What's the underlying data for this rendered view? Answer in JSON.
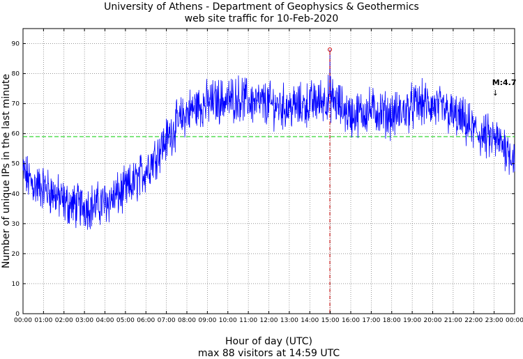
{
  "chart_data": {
    "type": "line",
    "title": "University of Athens - Department of Geophysics & Geothermics",
    "subtitle": "web site traffic for 10-Feb-2020",
    "xlabel": "Hour of day (UTC)",
    "ylabel": "Number of unique IPs in the last minute",
    "caption": "max 88 visitors at 14:59 UTC",
    "xlim": [
      0,
      24
    ],
    "ylim": [
      0,
      95
    ],
    "xticks": [
      "00:00",
      "01:00",
      "02:00",
      "03:00",
      "04:00",
      "05:00",
      "06:00",
      "07:00",
      "08:00",
      "09:00",
      "10:00",
      "11:00",
      "12:00",
      "13:00",
      "14:00",
      "15:00",
      "16:00",
      "17:00",
      "18:00",
      "19:00",
      "20:00",
      "21:00",
      "22:00",
      "23:00",
      "00:00"
    ],
    "yticks": [
      0,
      10,
      20,
      30,
      40,
      50,
      60,
      70,
      80,
      90
    ],
    "grid": true,
    "series": [
      {
        "color": "#0000ff",
        "x": [
          0,
          0.5,
          1,
          1.5,
          2,
          2.5,
          3,
          3.5,
          4,
          4.5,
          5,
          5.5,
          6,
          6.5,
          7,
          7.5,
          8,
          8.5,
          9,
          9.5,
          10,
          10.5,
          11,
          11.5,
          12,
          12.5,
          13,
          13.5,
          14,
          14.5,
          15,
          15.5,
          16,
          16.5,
          17,
          17.5,
          18,
          18.5,
          19,
          19.5,
          20,
          20.5,
          21,
          21.5,
          22,
          22.5,
          23,
          23.5,
          24
        ],
        "y": [
          47,
          43,
          42,
          40,
          37,
          36,
          36,
          36,
          37,
          39,
          41,
          44,
          48,
          53,
          58,
          63,
          67,
          69,
          70,
          71,
          71,
          72,
          71,
          70,
          70,
          69,
          69,
          69,
          70,
          71,
          72,
          69,
          66,
          67,
          68,
          67,
          66,
          67,
          69,
          70,
          69,
          68,
          66,
          64,
          61,
          59,
          58,
          56,
          52
        ]
      }
    ],
    "mean_line": {
      "value": 59,
      "color": "#00cc00"
    },
    "max_marker": {
      "x": 14.98,
      "y": 88,
      "color": "#cc0000"
    },
    "annotation": {
      "label": "M:4.7",
      "arrow": "↓",
      "x": 22.9
    }
  }
}
